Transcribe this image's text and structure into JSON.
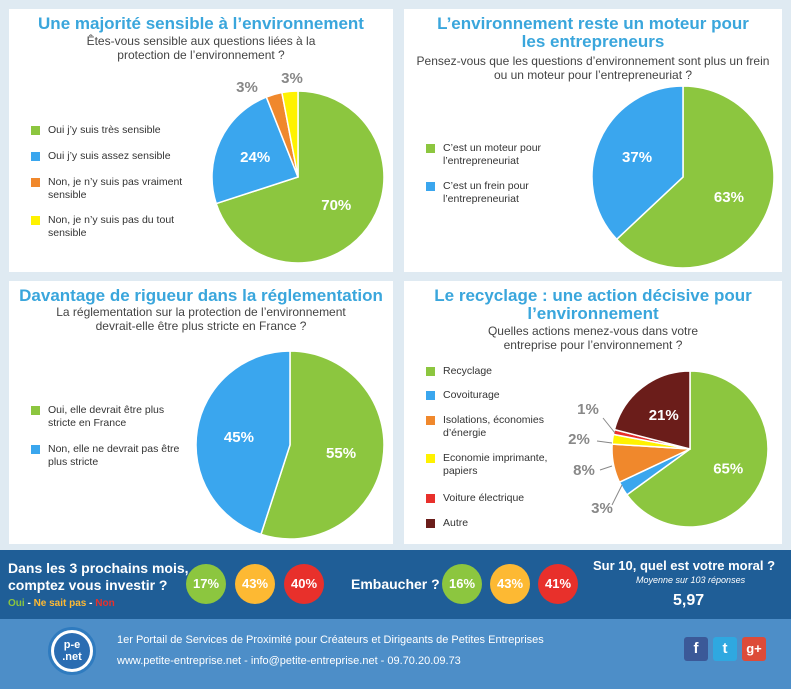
{
  "colors": {
    "green": "#8cc63f",
    "blue": "#3aa6ee",
    "orange": "#f0882c",
    "yellow": "#fff200",
    "red": "#e8302b",
    "darkred": "#6b1d1a",
    "title": "#3aa6dc"
  },
  "chart_data": [
    {
      "type": "pie",
      "title": "Une majorité sensible à l’environnement",
      "subtitle": "Êtes-vous sensible aux questions liées à la protection de l’environnement ?",
      "labels": [
        "Oui j’y suis très sensible",
        "Oui j’y suis assez sensible",
        "Non, je n’y suis pas vraiment sensible",
        "Non, je n’y suis pas du tout sensible"
      ],
      "values": [
        70,
        24,
        3,
        3
      ],
      "value_labels": [
        "70%",
        "24%",
        "3%",
        "3%"
      ],
      "colors": [
        "#8cc63f",
        "#3aa6ee",
        "#f0882c",
        "#fff200"
      ],
      "legend": "left"
    },
    {
      "type": "pie",
      "title": "L’environnement reste un moteur pour les entrepreneurs",
      "subtitle": "Pensez-vous que les questions d’environnement sont plus un frein ou un moteur pour l’entrepreneuriat ?",
      "labels": [
        "C’est un moteur pour l’entrepreneuriat",
        "C’est un frein pour l’entrepreneuriat"
      ],
      "values": [
        63,
        37
      ],
      "value_labels": [
        "63%",
        "37%"
      ],
      "colors": [
        "#8cc63f",
        "#3aa6ee"
      ],
      "legend": "left"
    },
    {
      "type": "pie",
      "title": "Davantage de rigueur dans la réglementation",
      "subtitle": "La réglementation sur la protection de l’environnement devrait-elle être plus stricte en France ?",
      "labels": [
        "Oui, elle devrait être plus stricte en France",
        "Non, elle ne devrait pas être plus stricte"
      ],
      "values": [
        55,
        45
      ],
      "value_labels": [
        "55%",
        "45%"
      ],
      "colors": [
        "#8cc63f",
        "#3aa6ee"
      ],
      "legend": "left"
    },
    {
      "type": "pie",
      "title": "Le recyclage : une action décisive pour l’environnement",
      "subtitle": "Quelles actions menez-vous dans votre entreprise pour l’environnement ?",
      "labels": [
        "Recyclage",
        "Covoiturage",
        "Isolations, économies d’énergie",
        "Economie imprimante, papiers",
        "Voiture électrique",
        "Autre"
      ],
      "values": [
        65,
        3,
        8,
        2,
        1,
        21
      ],
      "value_labels": [
        "65%",
        "3%",
        "8%",
        "2%",
        "1%",
        "21%"
      ],
      "colors": [
        "#8cc63f",
        "#3aa6ee",
        "#f0882c",
        "#fff200",
        "#e8302b",
        "#6b1d1a"
      ],
      "legend": "left"
    }
  ],
  "bar": {
    "q1": "Dans les 3 prochains mois, comptez vous investir ?",
    "legend_oui": "Oui",
    "legend_sep1": " - ",
    "legend_nsp": "Ne sait pas",
    "legend_sep2": " - ",
    "legend_non": "Non",
    "invest": [
      "17%",
      "43%",
      "40%"
    ],
    "q2": "Embaucher ?",
    "hire": [
      "16%",
      "43%",
      "41%"
    ],
    "q3": "Sur 10, quel est votre moral ?",
    "note": "Moyenne sur 103 réponses",
    "score": "5,97"
  },
  "footer": {
    "logo_text": "p-e .net",
    "line1": "1er Portail de Services de Proximité pour Créateurs et Dirigeants de Petites Entreprises",
    "line2": "www.petite-entreprise.net - info@petite-entreprise.net - 09.70.20.09.73",
    "facebook": "f",
    "twitter": "t",
    "gplus": "g+"
  }
}
